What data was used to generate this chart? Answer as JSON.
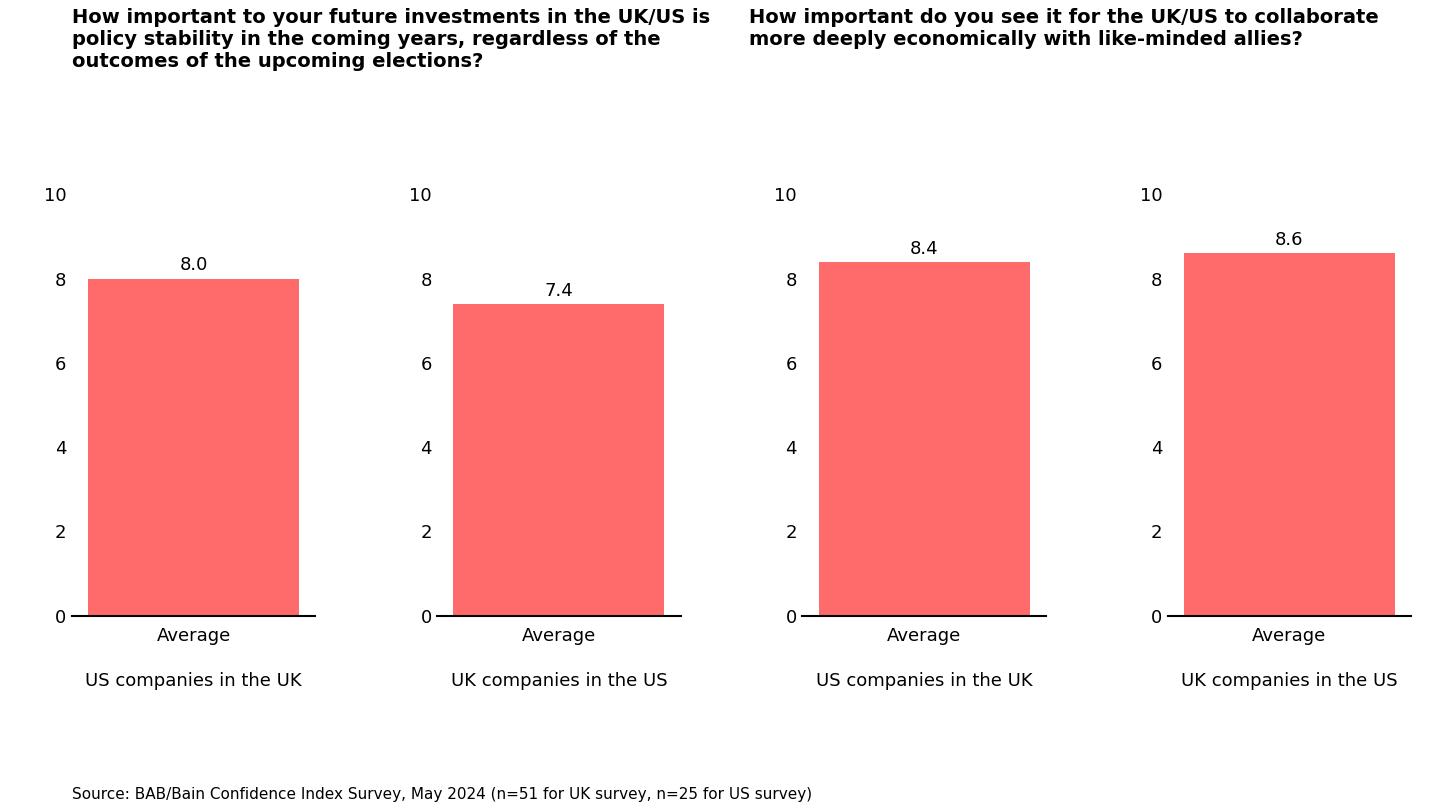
{
  "title_left": "How important to your future investments in the UK/US is\npolicy stability in the coming years, regardless of the\noutcomes of the upcoming elections?",
  "title_right": "How important do you see it for the UK/US to collaborate\nmore deeply economically with like-minded allies?",
  "bar_color": "#FF6B6B",
  "bar_values": [
    8.0,
    7.4,
    8.4,
    8.6
  ],
  "bar_labels": [
    "8.0",
    "7.4",
    "8.4",
    "8.6"
  ],
  "x_labels": [
    "Average",
    "Average",
    "Average",
    "Average"
  ],
  "group_labels": [
    "US companies in the UK",
    "UK companies in the US",
    "US companies in the UK",
    "UK companies in the US"
  ],
  "ylim": [
    0,
    10
  ],
  "yticks": [
    0,
    2,
    4,
    6,
    8,
    10
  ],
  "source_text": "Source: BAB/Bain Confidence Index Survey, May 2024 (n=51 for UK survey, n=25 for US survey)",
  "background_color": "#ffffff",
  "title_fontsize": 14,
  "label_fontsize": 13,
  "tick_fontsize": 13,
  "group_label_fontsize": 13,
  "source_fontsize": 11,
  "value_fontsize": 13
}
